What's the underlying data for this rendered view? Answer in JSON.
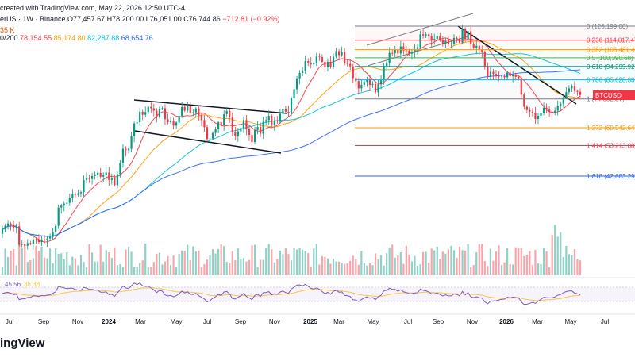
{
  "header": {
    "line1": "created with TradingView.com, May 22, 2026 12:50 UTC-4",
    "symbol": "erUS · 1W · Binance",
    "open": "O77,457.67",
    "high": "H78,200.00",
    "low": "L76,051.00",
    "close": "C76,744.86",
    "change": "−712.81 (−0.92%)",
    "volume": "35 K",
    "ma_label": "0/200",
    "ma_values": [
      "78,154.55",
      "85,174.80",
      "82,287.88",
      "68,654.76"
    ]
  },
  "brand": "ingView",
  "chart_data": {
    "type": "candlestick",
    "symbol_tag": "BTCUSD",
    "x_ticks": [
      "Jul",
      "Sep",
      "Nov",
      "2024",
      "Mar",
      "May",
      "Jul",
      "Sep",
      "Nov",
      "2025",
      "Mar",
      "May",
      "Jul",
      "Sep",
      "Nov",
      "2026",
      "Mar",
      "May",
      "Jul"
    ],
    "fib_levels": [
      {
        "ratio": "0",
        "price": 126199.0,
        "label": "0 (126,199.00)",
        "color": "#787b86"
      },
      {
        "ratio": "0.236",
        "price": 114017.47,
        "label": "0.236 (114,017.47)",
        "color": "#f23645"
      },
      {
        "ratio": "0.382",
        "price": 106481.45,
        "label": "0.382 (106,481.45)",
        "color": "#ff9800"
      },
      {
        "ratio": "0.5",
        "price": 100390.68,
        "label": "0.5 (100,390.68)",
        "color": "#4caf50"
      },
      {
        "ratio": "0.618",
        "price": 94299.92,
        "label": "0.618 (94,299.92)",
        "color": "#089981"
      },
      {
        "ratio": "0.786",
        "price": 85628.33,
        "label": "0.786 (85,628.33)",
        "color": "#00bcd4"
      },
      {
        "ratio": "1",
        "price": 74582.37,
        "label": "1 (74,582.37)",
        "color": "#787b86"
      },
      {
        "ratio": "1.272",
        "price": 60542.64,
        "label": "1.272 (60,542.64)",
        "color": "#ff9800"
      },
      {
        "ratio": "1.414",
        "price": 53213.08,
        "label": "1.414 (53,213.08)",
        "color": "#f23645"
      },
      {
        "ratio": "1.618",
        "price": 42683.29,
        "label": "1.618 (42,683.29)",
        "color": "#2962ff"
      }
    ],
    "candles_weekly_close_approx": [
      29000,
      29800,
      30300,
      30000,
      29300,
      29700,
      26000,
      26100,
      25800,
      26300,
      26200,
      27000,
      26900,
      26500,
      27000,
      26800,
      27200,
      27500,
      28500,
      29800,
      34000,
      34500,
      35000,
      35200,
      36500,
      37500,
      37300,
      37700,
      38000,
      41500,
      42000,
      41800,
      42700,
      43000,
      43700,
      42500,
      43000,
      43800,
      41500,
      42000,
      40000,
      43300,
      47000,
      52000,
      51500,
      52000,
      57000,
      62500,
      63000,
      68000,
      66500,
      67800,
      70500,
      69700,
      68500,
      65500,
      69500,
      69700,
      64400,
      63000,
      63800,
      61500,
      62900,
      66000,
      70400,
      68500,
      71000,
      67500,
      67700,
      69600,
      66200,
      64000,
      60800,
      55800,
      56000,
      58300,
      60000,
      63000,
      61800,
      66800,
      68400,
      65500,
      58500,
      57200,
      59000,
      60400,
      64000,
      59900,
      57500,
      54600,
      59500,
      60900,
      58000,
      63200,
      64000,
      66000,
      62000,
      63800,
      63300,
      67000,
      69500,
      68000,
      67500,
      75000,
      80000,
      86500,
      90000,
      91000,
      98000,
      97000,
      95700,
      96400,
      101300,
      100900,
      97500,
      93700,
      97500,
      94100,
      101200,
      105400,
      102300,
      104600,
      97000,
      96100,
      94400,
      86700,
      84800,
      80500,
      82600,
      84300,
      86200,
      82600,
      83100,
      78300,
      82900,
      85300,
      94700,
      97000,
      104000,
      103800,
      106300,
      103600,
      109000,
      105900,
      105700,
      103500,
      104500,
      107000,
      108400,
      119000,
      118000,
      119000,
      117400,
      113900,
      115000,
      117500,
      114500,
      111200,
      113500,
      111100,
      111100,
      115900,
      115200,
      112000,
      123500,
      115000,
      121600,
      110700,
      108000,
      109500,
      106500,
      104700,
      94200,
      87500,
      90700,
      89300,
      88000,
      87800,
      88100,
      87200,
      90200,
      87900,
      89000,
      87500,
      86500,
      76900,
      70500,
      68800,
      68000,
      67500,
      64500,
      66000,
      67500,
      70000,
      69000,
      68000,
      67500,
      68500,
      71000,
      72000,
      75500,
      78300,
      80500,
      82000,
      79000,
      78500,
      76744
    ]
  },
  "rsi": {
    "value1": "45.56",
    "value2": "38.38"
  }
}
